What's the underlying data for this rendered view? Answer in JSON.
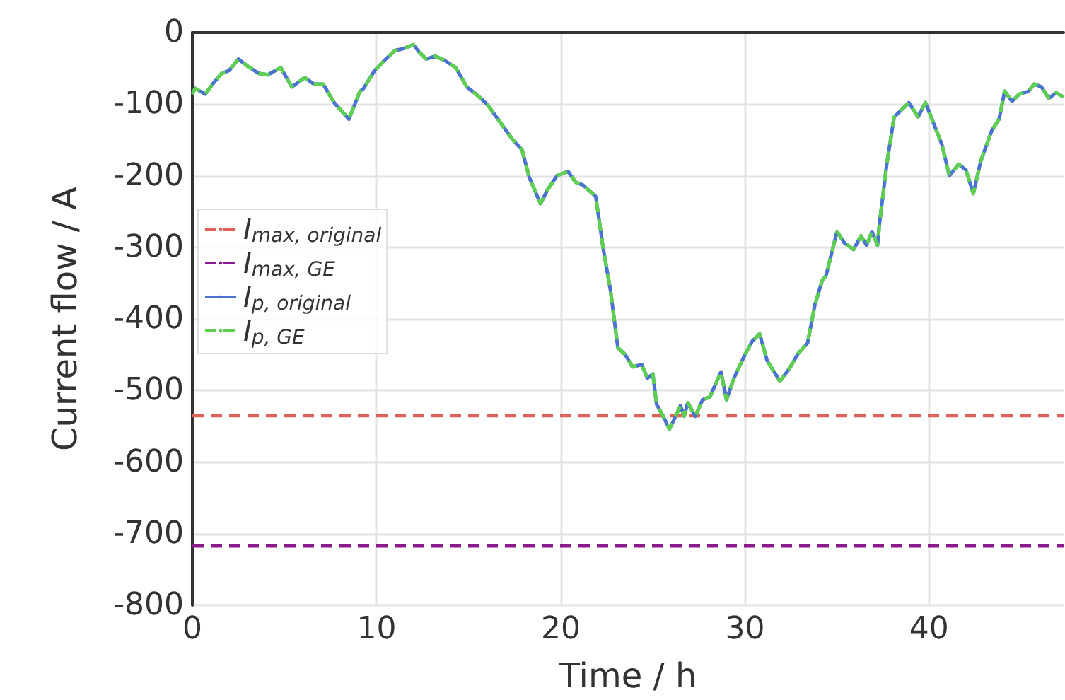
{
  "chart_data": {
    "type": "line",
    "xlabel": "Time / h",
    "ylabel": "Current flow / A",
    "xlim": [
      0,
      47.3
    ],
    "xticks": [
      0,
      10,
      20,
      30,
      40
    ],
    "ylim": [
      -800,
      0
    ],
    "yticks": [
      -800,
      -700,
      -600,
      -500,
      -400,
      -300,
      -200,
      -100,
      0
    ],
    "grid": true,
    "legend": "left",
    "marker": "none",
    "series": [
      {
        "name": "I$_{max, original}$",
        "color": "#e0605a",
        "line_style": "dashed",
        "x": [
          0,
          47.3
        ],
        "values": [
          -535,
          -535
        ]
      },
      {
        "name": "I$_{max, GE}$",
        "color": "#8b1a8b",
        "line_style": "dashed",
        "x": [
          0,
          47.3
        ],
        "values": [
          -717,
          -717
        ]
      },
      {
        "name": "I$_{p, original}$",
        "color": "#4c72d0",
        "line_style": "solid",
        "x": [
          0,
          0.15,
          0.7,
          1.1,
          1.6,
          2.0,
          2.5,
          3.0,
          3.6,
          4.1,
          4.8,
          5.4,
          6.1,
          6.6,
          7.1,
          7.7,
          8.5,
          9.1,
          9.3,
          9.9,
          10.5,
          11.0,
          11.4,
          12.0,
          12.3,
          12.7,
          13.2,
          13.7,
          14.3,
          14.9,
          15.4,
          16.0,
          16.7,
          17.4,
          17.9,
          18.3,
          18.9,
          19.3,
          19.8,
          20.4,
          20.8,
          21.2,
          21.9,
          22.3,
          22.7,
          23.1,
          23.5,
          23.9,
          24.4,
          24.7,
          25.0,
          25.2,
          25.6,
          25.9,
          26.2,
          26.5,
          26.7,
          26.9,
          27.3,
          27.7,
          28.1,
          28.7,
          29.0,
          29.4,
          30.0,
          30.4,
          30.8,
          31.2,
          31.9,
          32.4,
          32.9,
          33.4,
          33.8,
          34.2,
          34.4,
          35.0,
          35.4,
          35.9,
          36.3,
          36.6,
          36.9,
          37.2,
          37.3,
          37.7,
          38.1,
          38.5,
          38.9,
          39.4,
          39.8,
          40.4,
          40.7,
          41.1,
          41.6,
          42.0,
          42.4,
          42.8,
          43.4,
          43.8,
          44.1,
          44.5,
          44.9,
          45.4,
          45.7,
          46.1,
          46.5,
          46.9,
          47.3
        ],
        "values": [
          -86,
          -78,
          -86,
          -72,
          -57,
          -53,
          -37,
          -47,
          -57,
          -59,
          -49,
          -76,
          -63,
          -72,
          -72,
          -98,
          -121,
          -82,
          -78,
          -53,
          -37,
          -25,
          -23,
          -17,
          -27,
          -37,
          -33,
          -39,
          -49,
          -76,
          -86,
          -100,
          -125,
          -150,
          -164,
          -203,
          -239,
          -219,
          -200,
          -194,
          -209,
          -213,
          -229,
          -301,
          -360,
          -440,
          -450,
          -467,
          -464,
          -483,
          -477,
          -519,
          -538,
          -554,
          -538,
          -521,
          -536,
          -517,
          -536,
          -513,
          -509,
          -474,
          -513,
          -483,
          -450,
          -431,
          -421,
          -458,
          -487,
          -470,
          -448,
          -434,
          -380,
          -346,
          -340,
          -278,
          -294,
          -303,
          -284,
          -297,
          -278,
          -297,
          -268,
          -184,
          -118,
          -108,
          -98,
          -118,
          -98,
          -137,
          -157,
          -200,
          -184,
          -192,
          -225,
          -180,
          -137,
          -121,
          -82,
          -96,
          -86,
          -82,
          -72,
          -76,
          -92,
          -84,
          -90
        ]
      },
      {
        "name": "I$_{p, GE}$",
        "color": "#5fcf50",
        "line_style": "dashed",
        "x": [
          0,
          0.15,
          0.7,
          1.1,
          1.6,
          2.0,
          2.5,
          3.0,
          3.6,
          4.1,
          4.8,
          5.4,
          6.1,
          6.6,
          7.1,
          7.7,
          8.5,
          9.1,
          9.3,
          9.9,
          10.5,
          11.0,
          11.4,
          12.0,
          12.3,
          12.7,
          13.2,
          13.7,
          14.3,
          14.9,
          15.4,
          16.0,
          16.7,
          17.4,
          17.9,
          18.3,
          18.9,
          19.3,
          19.8,
          20.4,
          20.8,
          21.2,
          21.9,
          22.3,
          22.7,
          23.1,
          23.5,
          23.9,
          24.4,
          24.7,
          25.0,
          25.2,
          25.6,
          25.9,
          26.2,
          26.5,
          26.7,
          26.9,
          27.3,
          27.7,
          28.1,
          28.7,
          29.0,
          29.4,
          30.0,
          30.4,
          30.8,
          31.2,
          31.9,
          32.4,
          32.9,
          33.4,
          33.8,
          34.2,
          34.4,
          35.0,
          35.4,
          35.9,
          36.3,
          36.6,
          36.9,
          37.2,
          37.3,
          37.7,
          38.1,
          38.5,
          38.9,
          39.4,
          39.8,
          40.4,
          40.7,
          41.1,
          41.6,
          42.0,
          42.4,
          42.8,
          43.4,
          43.8,
          44.1,
          44.5,
          44.9,
          45.4,
          45.7,
          46.1,
          46.5,
          46.9,
          47.3
        ],
        "values": [
          -86,
          -78,
          -86,
          -72,
          -57,
          -53,
          -37,
          -47,
          -57,
          -59,
          -49,
          -76,
          -63,
          -72,
          -72,
          -98,
          -121,
          -82,
          -78,
          -53,
          -37,
          -25,
          -23,
          -17,
          -27,
          -37,
          -33,
          -39,
          -49,
          -76,
          -86,
          -100,
          -125,
          -150,
          -164,
          -203,
          -239,
          -219,
          -200,
          -194,
          -209,
          -213,
          -229,
          -301,
          -360,
          -440,
          -450,
          -467,
          -464,
          -483,
          -477,
          -519,
          -538,
          -554,
          -538,
          -521,
          -536,
          -517,
          -536,
          -513,
          -509,
          -474,
          -513,
          -483,
          -450,
          -431,
          -421,
          -458,
          -487,
          -470,
          -448,
          -434,
          -380,
          -346,
          -340,
          -278,
          -294,
          -303,
          -284,
          -297,
          -278,
          -297,
          -268,
          -184,
          -118,
          -108,
          -98,
          -118,
          -98,
          -137,
          -157,
          -200,
          -184,
          -192,
          -225,
          -180,
          -137,
          -121,
          -82,
          -96,
          -86,
          -82,
          -72,
          -76,
          -92,
          -84,
          -90
        ]
      }
    ]
  }
}
